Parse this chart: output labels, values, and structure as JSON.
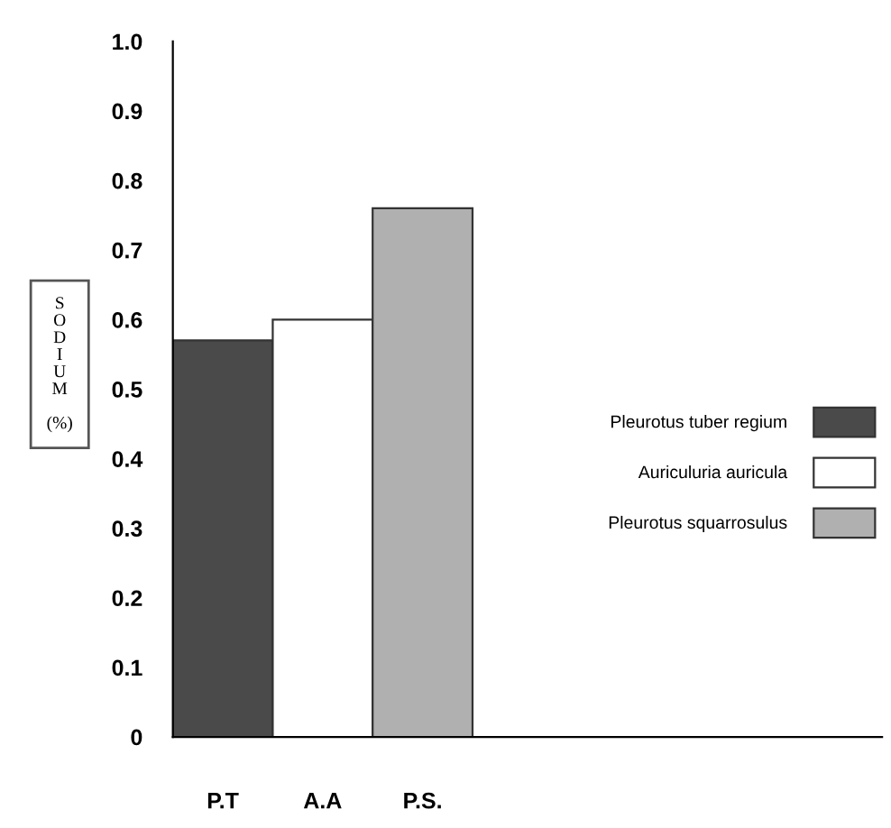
{
  "chart_data": {
    "type": "bar",
    "ylabel": "SODIUM (%)",
    "categories": [
      "P.T",
      "A.A",
      "P.S."
    ],
    "series": [
      {
        "name": "Pleurotus tuber regium",
        "color": "#4a4a4a",
        "values": [
          0.57,
          null,
          null
        ]
      },
      {
        "name": "Auriculuria auricula",
        "color": "#ffffff",
        "values": [
          null,
          0.6,
          null
        ]
      },
      {
        "name": "Pleurotus squarrosulus",
        "color": "#b0b0b0",
        "values": [
          null,
          null,
          0.76
        ]
      }
    ],
    "ylim": [
      0,
      1.0
    ],
    "yticks": [
      0,
      0.1,
      0.2,
      0.3,
      0.4,
      0.5,
      0.6,
      0.7,
      0.8,
      0.9,
      {
        "value": 1.0,
        "label": "1.0"
      }
    ],
    "grid": false,
    "legend": "right"
  }
}
